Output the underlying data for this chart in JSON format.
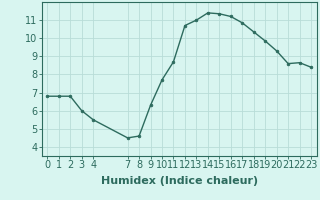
{
  "x": [
    0,
    1,
    2,
    3,
    4,
    7,
    8,
    9,
    10,
    11,
    12,
    13,
    14,
    15,
    16,
    17,
    18,
    19,
    20,
    21,
    22,
    23
  ],
  "y": [
    6.8,
    6.8,
    6.8,
    6.0,
    5.5,
    4.5,
    4.6,
    6.3,
    7.7,
    8.7,
    10.7,
    11.0,
    11.4,
    11.35,
    11.2,
    10.85,
    10.35,
    9.85,
    9.3,
    8.6,
    8.65,
    8.4
  ],
  "line_color": "#2d6b5e",
  "marker": "o",
  "marker_size": 2,
  "bg_color": "#d8f5f0",
  "grid_color": "#b8ddd8",
  "xlabel": "Humidex (Indice chaleur)",
  "ylim": [
    3.5,
    12.0
  ],
  "xlim": [
    -0.5,
    23.5
  ],
  "yticks": [
    4,
    5,
    6,
    7,
    8,
    9,
    10,
    11
  ],
  "xticks": [
    0,
    1,
    2,
    3,
    4,
    7,
    8,
    9,
    10,
    11,
    12,
    13,
    14,
    15,
    16,
    17,
    18,
    19,
    20,
    21,
    22,
    23
  ],
  "xtick_labels": [
    "0",
    "1",
    "2",
    "3",
    "4",
    "7",
    "8",
    "9",
    "10",
    "11",
    "12",
    "13",
    "14",
    "15",
    "16",
    "17",
    "18",
    "19",
    "20",
    "21",
    "22",
    "23"
  ],
  "tick_color": "#2d6b5e",
  "label_color": "#2d6b5e",
  "spine_color": "#2d6b5e",
  "fontsize_xlabel": 8,
  "fontsize_ticks": 7
}
